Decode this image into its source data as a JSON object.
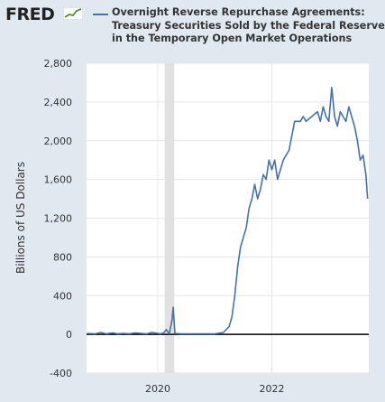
{
  "header": {
    "logo_text": "FRED",
    "legend_lines": [
      "Overnight Reverse Repurchase Agreements:",
      "Treasury Securities Sold by the Federal Reserve",
      "in the Temporary Open Market Operations"
    ]
  },
  "colors": {
    "background": "#e1e9f0",
    "plot_background": "#ffffff",
    "series": "#4572a7",
    "recession": "#e1e1e1",
    "grid": "#e6e6e6"
  },
  "chart_data": {
    "type": "line",
    "ylabel": "Billions of US Dollars",
    "xlabel": "",
    "ylim": [
      -400,
      2800
    ],
    "yticks": [
      -400,
      0,
      400,
      800,
      1200,
      1600,
      2000,
      2400,
      2800
    ],
    "xticks": [
      "2020",
      "2022"
    ],
    "xlim": [
      2018.75,
      2023.7
    ],
    "recession": [
      2020.12,
      2020.29
    ],
    "grid": true,
    "series": [
      {
        "name": "Overnight Reverse Repurchase Agreements: Treasury Securities Sold by the Federal Reserve in the Temporary Open Market Operations",
        "x": [
          2018.76,
          2018.9,
          2019.0,
          2019.1,
          2019.2,
          2019.3,
          2019.4,
          2019.5,
          2019.6,
          2019.7,
          2019.8,
          2019.9,
          2020.0,
          2020.05,
          2020.1,
          2020.15,
          2020.2,
          2020.25,
          2020.27,
          2020.3,
          2020.4,
          2020.5,
          2020.6,
          2020.8,
          2021.0,
          2021.15,
          2021.25,
          2021.3,
          2021.35,
          2021.4,
          2021.45,
          2021.5,
          2021.55,
          2021.6,
          2021.65,
          2021.7,
          2021.75,
          2021.8,
          2021.85,
          2021.9,
          2021.95,
          2022.0,
          2022.05,
          2022.1,
          2022.2,
          2022.3,
          2022.4,
          2022.5,
          2022.55,
          2022.6,
          2022.7,
          2022.8,
          2022.85,
          2022.9,
          2022.95,
          2023.0,
          2023.05,
          2023.1,
          2023.15,
          2023.2,
          2023.25,
          2023.3,
          2023.35,
          2023.4,
          2023.45,
          2023.5,
          2023.55,
          2023.6,
          2023.65,
          2023.68
        ],
        "y": [
          10,
          5,
          20,
          5,
          15,
          5,
          10,
          5,
          15,
          10,
          5,
          20,
          10,
          5,
          15,
          50,
          5,
          150,
          280,
          10,
          5,
          5,
          5,
          5,
          5,
          20,
          80,
          180,
          400,
          700,
          900,
          1000,
          1100,
          1300,
          1400,
          1550,
          1400,
          1500,
          1650,
          1600,
          1800,
          1700,
          1800,
          1600,
          1800,
          1900,
          2200,
          2200,
          2250,
          2200,
          2250,
          2300,
          2200,
          2350,
          2250,
          2200,
          2550,
          2250,
          2150,
          2300,
          2250,
          2200,
          2350,
          2250,
          2150,
          2000,
          1800,
          1850,
          1650,
          1400
        ]
      }
    ]
  }
}
